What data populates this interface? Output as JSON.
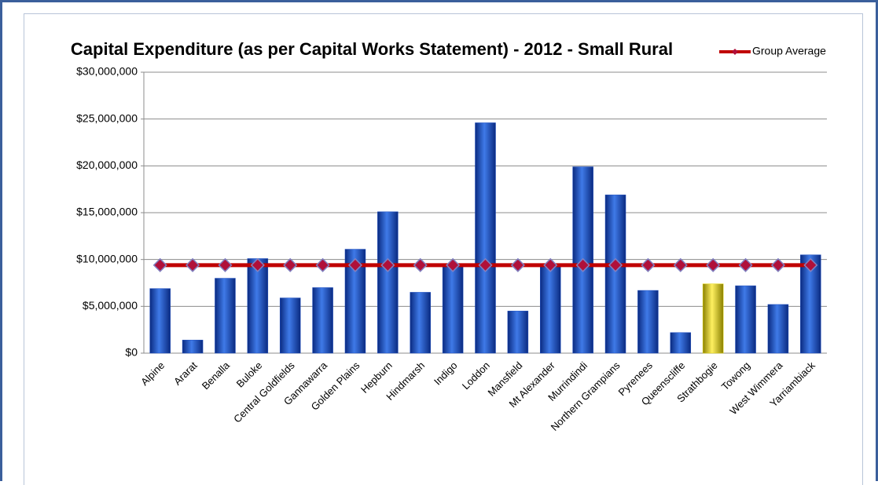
{
  "chart_data": {
    "type": "bar",
    "title": "Capital Expenditure (as per Capital Works Statement) - 2012 - Small Rural",
    "categories": [
      "Alpine",
      "Ararat",
      "Benalla",
      "Buloke",
      "Central Goldfields",
      "Gannawarra",
      "Golden Plains",
      "Hepburn",
      "Hindmarsh",
      "Indigo",
      "Loddon",
      "Mansfield",
      "Mt Alexander",
      "Murrindindi",
      "Northern Grampians",
      "Pyrenees",
      "Queenscliffe",
      "Strathbogie",
      "Towong",
      "West Wimmera",
      "Yarriambiack"
    ],
    "values": [
      6900000,
      1400000,
      8000000,
      10100000,
      5900000,
      7000000,
      11100000,
      15100000,
      6500000,
      9400000,
      24600000,
      4500000,
      9400000,
      19900000,
      16900000,
      6700000,
      2200000,
      7400000,
      7200000,
      5200000,
      10500000
    ],
    "colors": [
      "#1f4fc0",
      "#1f4fc0",
      "#1f4fc0",
      "#1f4fc0",
      "#1f4fc0",
      "#1f4fc0",
      "#1f4fc0",
      "#1f4fc0",
      "#1f4fc0",
      "#1f4fc0",
      "#1f4fc0",
      "#1f4fc0",
      "#1f4fc0",
      "#1f4fc0",
      "#1f4fc0",
      "#1f4fc0",
      "#1f4fc0",
      "#e2d400",
      "#1f4fc0",
      "#1f4fc0",
      "#1f4fc0"
    ],
    "series": [
      {
        "name": "Group Average",
        "color": "#c00000",
        "type": "line",
        "values": [
          9400000,
          9400000,
          9400000,
          9400000,
          9400000,
          9400000,
          9400000,
          9400000,
          9400000,
          9400000,
          9400000,
          9400000,
          9400000,
          9400000,
          9400000,
          9400000,
          9400000,
          9400000,
          9400000,
          9400000,
          9400000
        ]
      }
    ],
    "ylim": [
      0,
      30000000
    ],
    "yticks": [
      {
        "value": 0,
        "label": "$0"
      },
      {
        "value": 5000000,
        "label": "$5,000,000"
      },
      {
        "value": 10000000,
        "label": "$10,000,000"
      },
      {
        "value": 15000000,
        "label": "$15,000,000"
      },
      {
        "value": 20000000,
        "label": "$20,000,000"
      },
      {
        "value": 25000000,
        "label": "$25,000,000"
      },
      {
        "value": 30000000,
        "label": "$30,000,000"
      }
    ],
    "grid": true,
    "legend": "top-right"
  }
}
